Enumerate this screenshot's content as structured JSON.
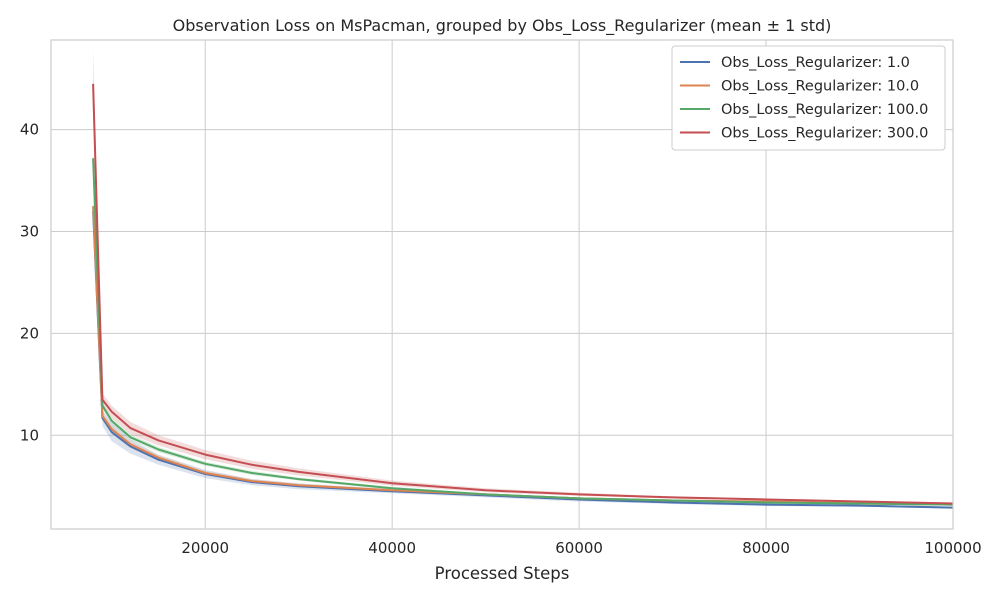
{
  "chart_data": {
    "type": "line",
    "title": "Observation Loss on MsPacman, grouped by Obs_Loss_Regularizer (mean ± 1 std)",
    "xlabel": "Processed Steps",
    "ylabel": "",
    "xlim": [
      3500,
      100000
    ],
    "ylim": [
      0.8,
      48.8
    ],
    "xticks": [
      20000,
      40000,
      60000,
      80000,
      100000
    ],
    "xtick_labels": [
      "20000",
      "40000",
      "60000",
      "80000",
      "100000"
    ],
    "yticks": [
      10,
      20,
      30,
      40
    ],
    "ytick_labels": [
      "10",
      "20",
      "30",
      "40"
    ],
    "grid": true,
    "legend_position": "top-right",
    "x": [
      8000,
      9000,
      10000,
      12000,
      15000,
      20000,
      25000,
      30000,
      40000,
      50000,
      60000,
      70000,
      80000,
      90000,
      100000
    ],
    "series": [
      {
        "name": "Obs_Loss_Regularizer: 1.0",
        "color": "#4c72b0",
        "values": [
          32.0,
          11.7,
          10.3,
          8.9,
          7.6,
          6.2,
          5.4,
          5.0,
          4.5,
          4.1,
          3.7,
          3.4,
          3.2,
          3.1,
          2.9
        ],
        "std": [
          0.8,
          0.8,
          0.9,
          0.7,
          0.5,
          0.4,
          0.3,
          0.3,
          0.2,
          0.2,
          0.2,
          0.15,
          0.15,
          0.1,
          0.1
        ]
      },
      {
        "name": "Obs_Loss_Regularizer: 10.0",
        "color": "#dd8452",
        "values": [
          32.5,
          11.9,
          10.6,
          9.1,
          7.8,
          6.3,
          5.5,
          5.1,
          4.6,
          4.2,
          3.8,
          3.6,
          3.5,
          3.3,
          3.2
        ],
        "std": [
          0.5,
          0.4,
          0.4,
          0.3,
          0.25,
          0.2,
          0.2,
          0.15,
          0.15,
          0.1,
          0.1,
          0.1,
          0.1,
          0.1,
          0.1
        ]
      },
      {
        "name": "Obs_Loss_Regularizer: 100.0",
        "color": "#55a868",
        "values": [
          37.2,
          12.9,
          11.4,
          9.8,
          8.6,
          7.2,
          6.3,
          5.7,
          4.8,
          4.2,
          3.8,
          3.6,
          3.4,
          3.3,
          3.2
        ],
        "std": [
          0.4,
          0.3,
          0.3,
          0.3,
          0.25,
          0.2,
          0.2,
          0.15,
          0.15,
          0.1,
          0.1,
          0.1,
          0.1,
          0.1,
          0.1
        ]
      },
      {
        "name": "Obs_Loss_Regularizer: 300.0",
        "color": "#c44e52",
        "values": [
          44.5,
          13.5,
          12.3,
          10.7,
          9.5,
          8.1,
          7.1,
          6.4,
          5.3,
          4.6,
          4.2,
          3.9,
          3.7,
          3.5,
          3.3
        ],
        "std": [
          3.5,
          0.6,
          0.6,
          0.6,
          0.5,
          0.45,
          0.4,
          0.35,
          0.25,
          0.2,
          0.15,
          0.12,
          0.1,
          0.1,
          0.1
        ]
      }
    ]
  }
}
